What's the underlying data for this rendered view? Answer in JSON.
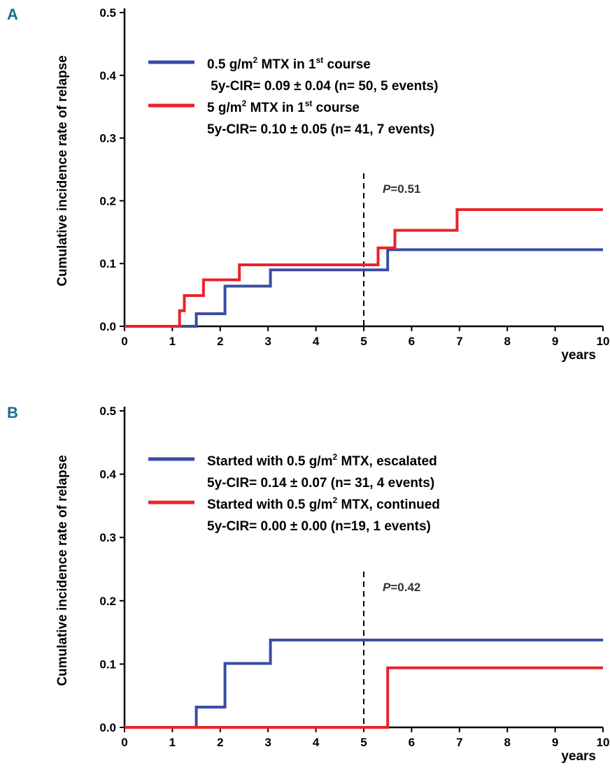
{
  "chart_data": [
    {
      "panel": "A",
      "type": "line",
      "step": true,
      "ylabel": "Cumulative incidence rate of relapse",
      "xlabel": "years",
      "xlim": [
        0,
        10
      ],
      "ylim": [
        0,
        0.5
      ],
      "x_ticks": [
        "0",
        "1",
        "2",
        "3",
        "4",
        "5",
        "6",
        "7",
        "8",
        "9",
        "10"
      ],
      "y_ticks": [
        "0.0",
        "0.1",
        "0.2",
        "0.3",
        "0.4",
        "0.5"
      ],
      "reference_line_x": 5,
      "p_value": {
        "label": "P",
        "value": "=0.51"
      },
      "legend": [
        {
          "color": "#3a4da3",
          "line1": "0.5 g/m",
          "sup1": "2",
          "line1b": " MTX in 1",
          "sup2": "st",
          "line1c": " course",
          "line2": " 5y-CIR= 0.09 ± 0.04 (n= 50, 5 events)"
        },
        {
          "color": "#e8232a",
          "line1": "5 g/m",
          "sup1": "2",
          "line1b": " MTX in 1",
          "sup2": "st",
          "line1c": " course",
          "line2": "5y-CIR= 0.10 ± 0.05 (n= 41, 7 events)"
        }
      ],
      "series": [
        {
          "color": "#3a4da3",
          "points": [
            [
              0,
              0
            ],
            [
              1.5,
              0
            ],
            [
              1.5,
              0.02
            ],
            [
              2.1,
              0.02
            ],
            [
              2.1,
              0.064
            ],
            [
              3.05,
              0.064
            ],
            [
              3.05,
              0.09
            ],
            [
              5.5,
              0.09
            ],
            [
              5.5,
              0.122
            ],
            [
              10,
              0.122
            ]
          ]
        },
        {
          "color": "#e8232a",
          "points": [
            [
              0,
              0
            ],
            [
              1.15,
              0
            ],
            [
              1.15,
              0.025
            ],
            [
              1.25,
              0.025
            ],
            [
              1.25,
              0.049
            ],
            [
              1.65,
              0.049
            ],
            [
              1.65,
              0.074
            ],
            [
              2.4,
              0.074
            ],
            [
              2.4,
              0.098
            ],
            [
              5.3,
              0.098
            ],
            [
              5.3,
              0.125
            ],
            [
              5.65,
              0.125
            ],
            [
              5.65,
              0.153
            ],
            [
              6.95,
              0.153
            ],
            [
              6.95,
              0.186
            ],
            [
              10,
              0.186
            ]
          ]
        }
      ]
    },
    {
      "panel": "B",
      "type": "line",
      "step": true,
      "ylabel": "Cumulative incidence rate of relapse",
      "xlabel": "years",
      "xlim": [
        0,
        10
      ],
      "ylim": [
        0,
        0.5
      ],
      "x_ticks": [
        "0",
        "1",
        "2",
        "3",
        "4",
        "5",
        "6",
        "7",
        "8",
        "9",
        "10"
      ],
      "y_ticks": [
        "0.0",
        "0.1",
        "0.2",
        "0.3",
        "0.4",
        "0.5"
      ],
      "reference_line_x": 5,
      "p_value": {
        "label": "P",
        "value": "=0.42"
      },
      "legend": [
        {
          "color": "#3a4da3",
          "line1": "Started with 0.5 g/m",
          "sup1": "2",
          "line1b": " MTX, escalated",
          "sup2": "",
          "line1c": "",
          "line2": "5y-CIR= 0.14 ± 0.07 (n= 31, 4 events)"
        },
        {
          "color": "#e8232a",
          "line1": "Started with 0.5 g/m",
          "sup1": "2",
          "line1b": " MTX, continued",
          "sup2": "",
          "line1c": "",
          "line2": "5y-CIR= 0.00 ± 0.00 (n=19, 1 events)"
        }
      ],
      "series": [
        {
          "color": "#3a4da3",
          "points": [
            [
              0,
              0
            ],
            [
              1.5,
              0
            ],
            [
              1.5,
              0.032
            ],
            [
              2.1,
              0.032
            ],
            [
              2.1,
              0.101
            ],
            [
              3.05,
              0.101
            ],
            [
              3.05,
              0.138
            ],
            [
              10,
              0.138
            ]
          ]
        },
        {
          "color": "#e8232a",
          "points": [
            [
              0,
              0
            ],
            [
              5.5,
              0
            ],
            [
              5.5,
              0.094
            ],
            [
              10,
              0.094
            ]
          ]
        }
      ]
    }
  ]
}
